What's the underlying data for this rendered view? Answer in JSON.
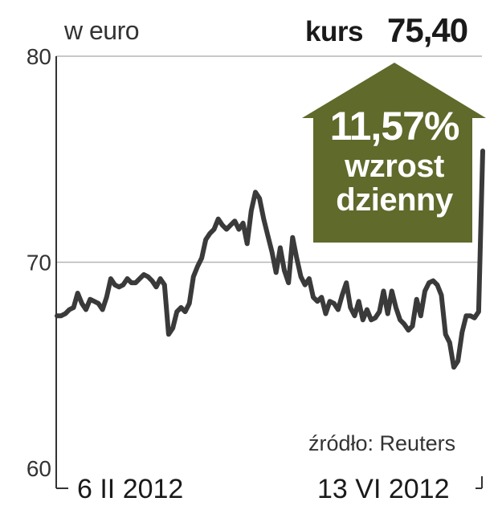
{
  "header": {
    "unit_label": "w euro",
    "kurs_label": "kurs",
    "kurs_value": "75,40"
  },
  "annotation": {
    "percent": "11,57%",
    "line2": "wzrost",
    "line3": "dzienny"
  },
  "source": "źródło: Reuters",
  "x_labels": {
    "start": "6 II 2012",
    "end": "13 VI 2012"
  },
  "colors": {
    "line": "#3a3a3a",
    "arrow": "#5f6a2b",
    "grid": "#b5b5b5",
    "axis": "#333333"
  },
  "chart_data": {
    "type": "line",
    "ylim": [
      60,
      80
    ],
    "yticks": [
      60,
      70,
      80
    ],
    "grid": true,
    "series": [
      {
        "values": [
          67.4,
          67.4,
          67.5,
          67.7,
          67.8,
          68.5,
          68.0,
          67.7,
          68.2,
          68.1,
          68.0,
          67.7,
          68.3,
          69.2,
          68.9,
          68.8,
          68.9,
          69.2,
          69.0,
          69.0,
          69.2,
          69.4,
          69.3,
          69.1,
          68.8,
          69.2,
          68.9,
          66.5,
          66.8,
          67.6,
          67.8,
          67.6,
          68.0,
          69.3,
          69.8,
          70.2,
          71.1,
          71.4,
          71.6,
          72.1,
          71.8,
          71.6,
          71.8,
          72.0,
          71.6,
          71.9,
          70.9,
          72.5,
          73.4,
          73.1,
          72.1,
          71.3,
          70.5,
          69.5,
          70.7,
          69.6,
          69.0,
          71.2,
          70.2,
          69.3,
          68.9,
          69.2,
          68.3,
          68.1,
          68.3,
          67.5,
          68.1,
          68.0,
          67.7,
          68.4,
          69.0,
          67.8,
          67.4,
          68.1,
          67.2,
          67.7,
          67.2,
          67.3,
          67.6,
          68.6,
          67.5,
          68.6,
          67.8,
          67.2,
          67.0,
          66.7,
          66.9,
          68.2,
          67.4,
          68.6,
          69.0,
          69.1,
          68.9,
          68.4,
          66.5,
          66.1,
          64.9,
          65.2,
          66.6,
          67.4,
          67.4,
          67.3,
          67.6,
          75.4
        ]
      }
    ]
  }
}
